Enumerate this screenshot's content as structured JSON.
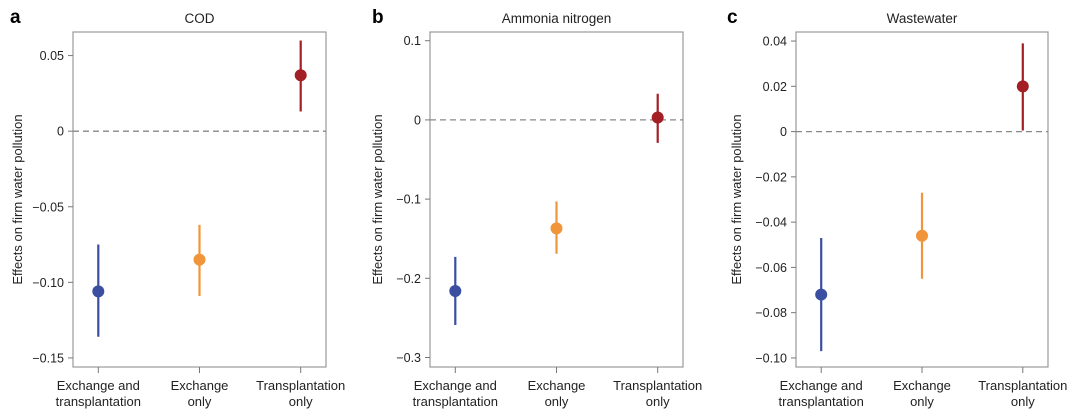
{
  "chart_data": [
    {
      "type": "scatter",
      "panel": "a",
      "title": "COD",
      "ylabel": "Effects on firm water pollution",
      "categories": [
        [
          "Exchange and",
          "transplantation"
        ],
        [
          "Exchange",
          "only"
        ],
        [
          "Transplantation",
          "only"
        ]
      ],
      "yticks": [
        0.05,
        0,
        -0.05,
        -0.1,
        -0.15
      ],
      "ytick_labels": [
        "0.05",
        "0",
        "−0.05",
        "−0.10",
        "−0.15"
      ],
      "ylim": [
        -0.156,
        0.0656
      ],
      "reference_line": 0,
      "points": [
        {
          "estimate": -0.106,
          "ci_low": -0.136,
          "ci_high": -0.075,
          "color": "#3a4fa0"
        },
        {
          "estimate": -0.085,
          "ci_low": -0.109,
          "ci_high": -0.062,
          "color": "#f0953a"
        },
        {
          "estimate": 0.037,
          "ci_low": 0.013,
          "ci_high": 0.06,
          "color": "#a31f24"
        }
      ]
    },
    {
      "type": "scatter",
      "panel": "b",
      "title": "Ammonia nitrogen",
      "ylabel": "Effects on firm water pollution",
      "categories": [
        [
          "Exchange and",
          "transplantation"
        ],
        [
          "Exchange",
          "only"
        ],
        [
          "Transplantation",
          "only"
        ]
      ],
      "yticks": [
        0.1,
        0,
        -0.1,
        -0.2,
        -0.3
      ],
      "ytick_labels": [
        "0.1",
        "0",
        "−0.1",
        "−0.2",
        "−0.3"
      ],
      "ylim": [
        -0.312,
        0.111
      ],
      "reference_line": 0,
      "points": [
        {
          "estimate": -0.216,
          "ci_low": -0.259,
          "ci_high": -0.173,
          "color": "#3a4fa0"
        },
        {
          "estimate": -0.137,
          "ci_low": -0.169,
          "ci_high": -0.103,
          "color": "#f0953a"
        },
        {
          "estimate": 0.003,
          "ci_low": -0.029,
          "ci_high": 0.033,
          "color": "#a31f24"
        }
      ]
    },
    {
      "type": "scatter",
      "panel": "c",
      "title": "Wastewater",
      "ylabel": "Effects on firm water pollution",
      "categories": [
        [
          "Exchange and",
          "transplantation"
        ],
        [
          "Exchange",
          "only"
        ],
        [
          "Transplantation",
          "only"
        ]
      ],
      "yticks": [
        0.04,
        0.02,
        0,
        -0.02,
        -0.04,
        -0.06,
        -0.08,
        -0.1
      ],
      "ytick_labels": [
        "0.04",
        "0.02",
        "0",
        "−0.02",
        "−0.04",
        "−0.06",
        "−0.08",
        "−0.10"
      ],
      "ylim": [
        -0.104,
        0.044
      ],
      "reference_line": 0,
      "points": [
        {
          "estimate": -0.072,
          "ci_low": -0.097,
          "ci_high": -0.047,
          "color": "#3a4fa0"
        },
        {
          "estimate": -0.046,
          "ci_low": -0.065,
          "ci_high": -0.027,
          "color": "#f0953a"
        },
        {
          "estimate": 0.02,
          "ci_low": 0.0005,
          "ci_high": 0.039,
          "color": "#a31f24"
        }
      ]
    }
  ]
}
